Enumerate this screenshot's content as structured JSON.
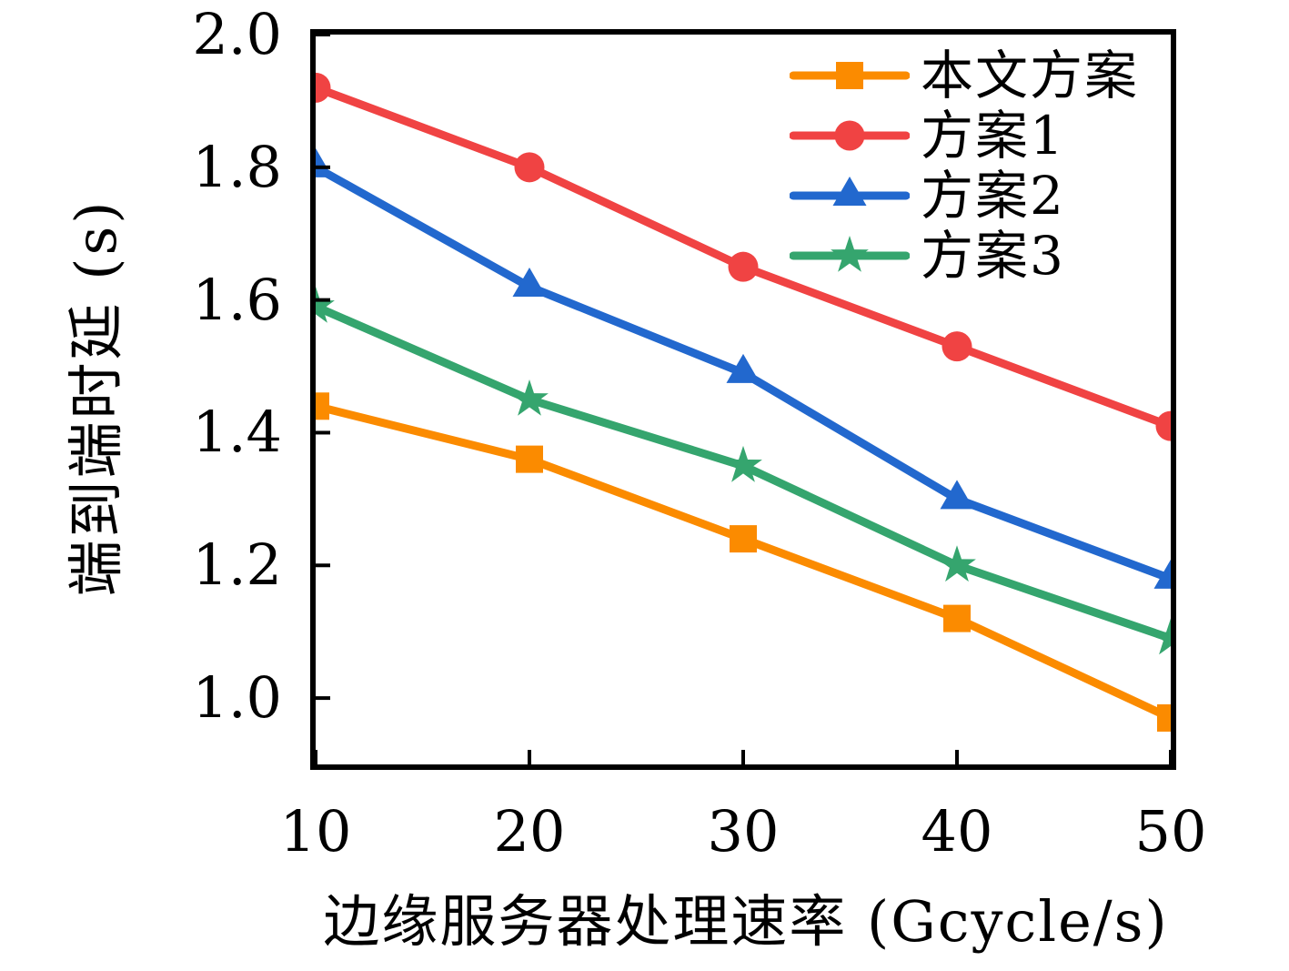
{
  "chart_data": {
    "type": "line",
    "title": "",
    "xlabel": "边缘服务器处理速率 (Gcycle/s)",
    "ylabel": "端到端时延 (s)",
    "x": [
      10,
      20,
      30,
      40,
      50
    ],
    "series": [
      {
        "name": "本文方案",
        "marker": "square",
        "color": "#FB8B00",
        "values": [
          1.44,
          1.36,
          1.24,
          1.12,
          0.97
        ]
      },
      {
        "name": "方案1",
        "marker": "circle",
        "color": "#F04343",
        "values": [
          1.92,
          1.8,
          1.65,
          1.53,
          1.41
        ]
      },
      {
        "name": "方案2",
        "marker": "triangle",
        "color": "#2268CE",
        "values": [
          1.8,
          1.62,
          1.49,
          1.3,
          1.18
        ]
      },
      {
        "name": "方案3",
        "marker": "star",
        "color": "#35A56E",
        "values": [
          1.59,
          1.45,
          1.35,
          1.2,
          1.09
        ]
      }
    ],
    "xlim": [
      10,
      50
    ],
    "ylim": [
      0.9,
      2.0
    ],
    "xticks": {
      "values": [
        10,
        20,
        30,
        40,
        50
      ],
      "labels": [
        "10",
        "20",
        "30",
        "40",
        "50"
      ]
    },
    "yticks": {
      "values": [
        2.0,
        1.8,
        1.6,
        1.4,
        1.2,
        1.0
      ],
      "labels": [
        "2.0",
        "1.8",
        "1.6",
        "1.4",
        "1.2",
        "1.0"
      ]
    },
    "grid": false,
    "legend_position": "top-right-inside",
    "axis_color": "#000000",
    "background_color": "#ffffff"
  }
}
